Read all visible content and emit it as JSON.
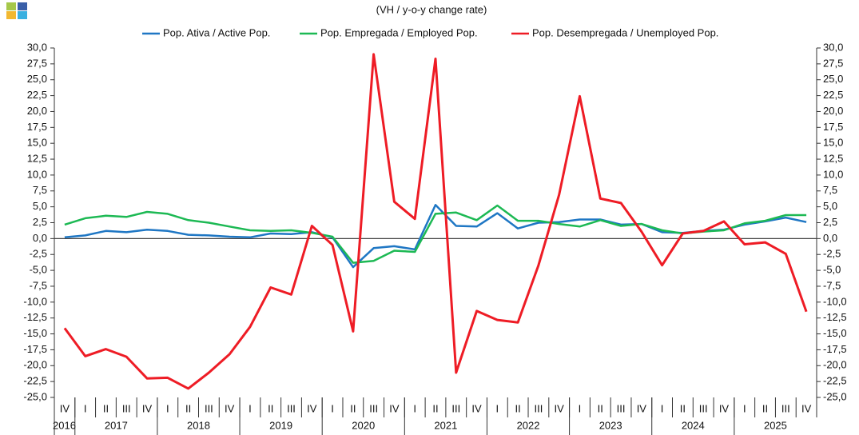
{
  "chart_data": {
    "type": "line",
    "title": "(VH / y-o-y change rate)",
    "categories": [
      "IV",
      "I",
      "II",
      "III",
      "IV",
      "I",
      "II",
      "III",
      "IV",
      "I",
      "II",
      "III",
      "IV",
      "I",
      "II",
      "III",
      "IV",
      "I",
      "II",
      "III",
      "IV",
      "I",
      "II",
      "III",
      "IV",
      "I",
      "II",
      "III",
      "IV",
      "I",
      "II",
      "III",
      "IV",
      "I",
      "II",
      "III",
      "IV"
    ],
    "years": [
      "2016",
      "2017",
      "2018",
      "2019",
      "2020",
      "2021",
      "2022",
      "2023",
      "2024",
      "2025"
    ],
    "series": [
      {
        "name": "Pop. Ativa / Active Pop.",
        "color": "#1f77c4",
        "values": [
          0.2,
          0.5,
          1.2,
          1.0,
          1.4,
          1.2,
          0.6,
          0.5,
          0.3,
          0.2,
          0.8,
          0.7,
          1.0,
          0.2,
          -4.5,
          -1.5,
          -1.2,
          -1.7,
          5.3,
          2.0,
          1.9,
          4.0,
          1.6,
          2.5,
          2.6,
          3.0,
          3.0,
          2.2,
          2.3,
          1.0,
          0.9,
          1.2,
          1.4,
          2.2,
          2.7,
          3.3,
          2.6
        ]
      },
      {
        "name": "Pop. Empregada / Employed Pop.",
        "color": "#1db954",
        "values": [
          2.2,
          3.2,
          3.6,
          3.4,
          4.2,
          3.9,
          2.9,
          2.5,
          1.9,
          1.3,
          1.2,
          1.3,
          0.9,
          0.3,
          -3.8,
          -3.5,
          -1.9,
          -2.1,
          3.9,
          4.1,
          2.9,
          5.2,
          2.8,
          2.8,
          2.3,
          1.9,
          2.9,
          2.0,
          2.3,
          1.3,
          0.8,
          1.1,
          1.3,
          2.4,
          2.8,
          3.7,
          3.7
        ]
      },
      {
        "name": "Pop. Desempregada / Unemployed Pop.",
        "color": "#ee1c25",
        "values": [
          -14.1,
          -18.5,
          -17.4,
          -18.6,
          -22.0,
          -21.9,
          -23.6,
          -21.1,
          -18.2,
          -13.9,
          -7.7,
          -8.8,
          2.0,
          -1.0,
          -14.6,
          29.0,
          5.8,
          3.1,
          28.3,
          -21.1,
          -11.4,
          -12.8,
          -13.2,
          -4.2,
          6.9,
          22.4,
          6.3,
          5.6,
          1.1,
          -4.2,
          0.8,
          1.2,
          2.7,
          -0.9,
          -0.6,
          -2.4,
          -11.5
        ]
      }
    ],
    "ylim": [
      -25,
      30
    ],
    "yticks": [
      {
        "value": 30,
        "label": "30,0"
      },
      {
        "value": 27.5,
        "label": "27,5"
      },
      {
        "value": 25,
        "label": "25,0"
      },
      {
        "value": 22.5,
        "label": "22,5"
      },
      {
        "value": 20,
        "label": "20,0"
      },
      {
        "value": 17.5,
        "label": "17,5"
      },
      {
        "value": 15,
        "label": "15,0"
      },
      {
        "value": 12.5,
        "label": "12,5"
      },
      {
        "value": 10,
        "label": "10,0"
      },
      {
        "value": 7.5,
        "label": "7,5"
      },
      {
        "value": 5,
        "label": "5,0"
      },
      {
        "value": 2.5,
        "label": "2,5"
      },
      {
        "value": 0,
        "label": "0,0"
      },
      {
        "value": -2.5,
        "label": "-2,5"
      },
      {
        "value": -5,
        "label": "-5,0"
      },
      {
        "value": -7.5,
        "label": "-7,5"
      },
      {
        "value": -10,
        "label": "-10,0"
      },
      {
        "value": -12.5,
        "label": "-12,5"
      },
      {
        "value": -15,
        "label": "-15,0"
      },
      {
        "value": -17.5,
        "label": "-17,5"
      },
      {
        "value": -20,
        "label": "-20,0"
      },
      {
        "value": -22.5,
        "label": "-22,5"
      },
      {
        "value": -25,
        "label": "-25,0"
      }
    ],
    "y2lim": [
      -25,
      30
    ],
    "y2ticks": [
      {
        "value": 30,
        "label": "30,0"
      },
      {
        "value": 27.5,
        "label": "27,5"
      },
      {
        "value": 25,
        "label": "25,0"
      },
      {
        "value": 22.5,
        "label": "22,5"
      },
      {
        "value": 20,
        "label": "20,0"
      },
      {
        "value": 17.5,
        "label": "17,5"
      },
      {
        "value": 15,
        "label": "15,0"
      },
      {
        "value": 12.5,
        "label": "12,5"
      },
      {
        "value": 10,
        "label": "10,0"
      },
      {
        "value": 7.5,
        "label": "7,5"
      },
      {
        "value": 5,
        "label": "5,0"
      },
      {
        "value": 2.5,
        "label": "2,5"
      },
      {
        "value": 0,
        "label": "0,0"
      },
      {
        "value": -2.5,
        "label": "-2,5"
      },
      {
        "value": -5,
        "label": "-5,0"
      },
      {
        "value": -7.5,
        "label": "-7,5"
      },
      {
        "value": -10,
        "label": "-10,0"
      },
      {
        "value": -12.5,
        "label": "-12,5"
      },
      {
        "value": -15,
        "label": "-15,0"
      },
      {
        "value": -17.5,
        "label": "-17,5"
      },
      {
        "value": -20,
        "label": "-20,0"
      },
      {
        "value": -22.5,
        "label": "-22,5"
      },
      {
        "value": -25,
        "label": "-25,0"
      }
    ],
    "grid": false
  }
}
